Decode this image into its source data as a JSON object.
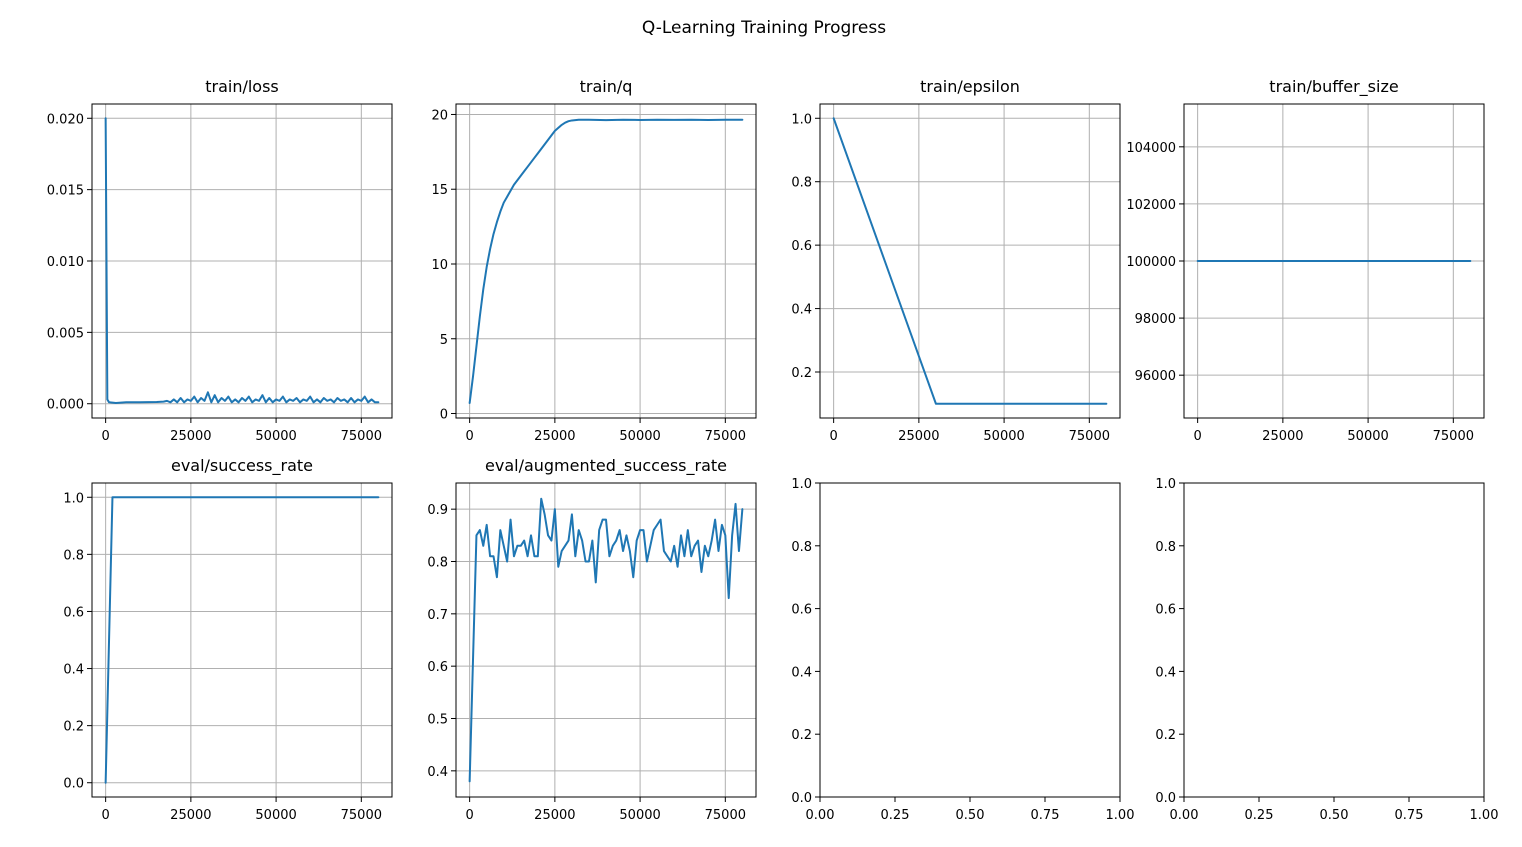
{
  "figure": {
    "title": "Q-Learning Training Progress"
  },
  "colors": {
    "series": "#1f77b4",
    "grid": "#b0b0b0"
  },
  "chart_data": [
    {
      "type": "line",
      "title": "train/loss",
      "grid": true,
      "xlim": [
        -4000,
        84000
      ],
      "ylim": [
        -0.001,
        0.021
      ],
      "xticks": [
        0,
        25000,
        50000,
        75000
      ],
      "xtick_labels": [
        "0",
        "25000",
        "50000",
        "75000"
      ],
      "yticks": [
        0.0,
        0.005,
        0.01,
        0.015,
        0.02
      ],
      "ytick_labels": [
        "0.000",
        "0.005",
        "0.010",
        "0.015",
        "0.020"
      ],
      "series": [
        {
          "x": [
            0,
            500,
            1000,
            3000,
            6000,
            10000,
            15000,
            17000,
            18000,
            19000,
            20000,
            21000,
            22000,
            23000,
            24000,
            25000,
            26000,
            27000,
            28000,
            29000,
            30000,
            31000,
            32000,
            33000,
            34000,
            35000,
            36000,
            37000,
            38000,
            39000,
            40000,
            41000,
            42000,
            43000,
            44000,
            45000,
            46000,
            47000,
            48000,
            49000,
            50000,
            51000,
            52000,
            53000,
            54000,
            55000,
            56000,
            57000,
            58000,
            59000,
            60000,
            61000,
            62000,
            63000,
            64000,
            65000,
            66000,
            67000,
            68000,
            69000,
            70000,
            71000,
            72000,
            73000,
            74000,
            75000,
            76000,
            77000,
            78000,
            79000,
            80000
          ],
          "y": [
            0.02,
            0.0003,
            0.0001,
            5e-05,
            0.0001,
            0.0001,
            0.00012,
            0.00015,
            0.0002,
            0.0001,
            0.0003,
            0.0001,
            0.0004,
            0.0001,
            0.0003,
            0.0002,
            0.0005,
            0.0001,
            0.0004,
            0.0002,
            0.0008,
            0.0001,
            0.0006,
            0.0001,
            0.0004,
            0.0002,
            0.0005,
            0.0001,
            0.0003,
            0.0001,
            0.0004,
            0.0002,
            0.0005,
            0.0001,
            0.0003,
            0.0002,
            0.0006,
            0.0001,
            0.0004,
            0.0001,
            0.0003,
            0.0002,
            0.0005,
            0.0001,
            0.0003,
            0.0002,
            0.0004,
            0.0001,
            0.0003,
            0.0002,
            0.0005,
            0.0001,
            0.0003,
            0.0001,
            0.0004,
            0.0002,
            0.0003,
            0.0001,
            0.0004,
            0.0002,
            0.0003,
            0.0001,
            0.0004,
            0.0001,
            0.0003,
            0.0002,
            0.0005,
            0.0001,
            0.0003,
            0.0001,
            0.0001
          ]
        }
      ]
    },
    {
      "type": "line",
      "title": "train/q",
      "grid": true,
      "xlim": [
        -4000,
        84000
      ],
      "ylim": [
        -0.3,
        20.7
      ],
      "xticks": [
        0,
        25000,
        50000,
        75000
      ],
      "xtick_labels": [
        "0",
        "25000",
        "50000",
        "75000"
      ],
      "yticks": [
        0,
        5,
        10,
        15,
        20
      ],
      "ytick_labels": [
        "0",
        "5",
        "10",
        "15",
        "20"
      ],
      "series": [
        {
          "x": [
            0,
            1000,
            2000,
            3000,
            4000,
            5000,
            6000,
            7000,
            8000,
            9000,
            10000,
            11000,
            12000,
            13000,
            14000,
            15000,
            16000,
            17000,
            18000,
            19000,
            20000,
            21000,
            22000,
            23000,
            24000,
            25000,
            26000,
            27000,
            28000,
            29000,
            30000,
            32000,
            35000,
            40000,
            45000,
            50000,
            55000,
            60000,
            65000,
            70000,
            75000,
            80000
          ],
          "y": [
            0.7,
            2.5,
            4.5,
            6.5,
            8.3,
            9.8,
            11.0,
            12.0,
            12.8,
            13.5,
            14.1,
            14.5,
            14.9,
            15.3,
            15.6,
            15.9,
            16.2,
            16.5,
            16.8,
            17.1,
            17.4,
            17.7,
            18.0,
            18.3,
            18.6,
            18.9,
            19.1,
            19.3,
            19.45,
            19.55,
            19.6,
            19.65,
            19.65,
            19.62,
            19.65,
            19.63,
            19.65,
            19.64,
            19.65,
            19.63,
            19.65,
            19.65
          ]
        }
      ]
    },
    {
      "type": "line",
      "title": "train/epsilon",
      "grid": true,
      "xlim": [
        -4000,
        84000
      ],
      "ylim": [
        0.055,
        1.045
      ],
      "xticks": [
        0,
        25000,
        50000,
        75000
      ],
      "xtick_labels": [
        "0",
        "25000",
        "50000",
        "75000"
      ],
      "yticks": [
        0.2,
        0.4,
        0.6,
        0.8,
        1.0
      ],
      "ytick_labels": [
        "0.2",
        "0.4",
        "0.6",
        "0.8",
        "1.0"
      ],
      "series": [
        {
          "x": [
            0,
            30000,
            80000
          ],
          "y": [
            1.0,
            0.1,
            0.1
          ]
        }
      ]
    },
    {
      "type": "line",
      "title": "train/buffer_size",
      "grid": true,
      "xlim": [
        -4000,
        84000
      ],
      "ylim": [
        94500,
        105500
      ],
      "xticks": [
        0,
        25000,
        50000,
        75000
      ],
      "xtick_labels": [
        "0",
        "25000",
        "50000",
        "75000"
      ],
      "yticks": [
        96000,
        98000,
        100000,
        102000,
        104000
      ],
      "ytick_labels": [
        "96000",
        "98000",
        "100000",
        "102000",
        "104000"
      ],
      "series": [
        {
          "x": [
            0,
            80000
          ],
          "y": [
            100000,
            100000
          ]
        }
      ]
    },
    {
      "type": "line",
      "title": "eval/success_rate",
      "grid": true,
      "xlim": [
        -4000,
        84000
      ],
      "ylim": [
        -0.05,
        1.05
      ],
      "xticks": [
        0,
        25000,
        50000,
        75000
      ],
      "xtick_labels": [
        "0",
        "25000",
        "50000",
        "75000"
      ],
      "yticks": [
        0.0,
        0.2,
        0.4,
        0.6,
        0.8,
        1.0
      ],
      "ytick_labels": [
        "0.0",
        "0.2",
        "0.4",
        "0.6",
        "0.8",
        "1.0"
      ],
      "series": [
        {
          "x": [
            0,
            2000,
            80000
          ],
          "y": [
            0.0,
            1.0,
            1.0
          ]
        }
      ]
    },
    {
      "type": "line",
      "title": "eval/augmented_success_rate",
      "grid": true,
      "xlim": [
        -4000,
        84000
      ],
      "ylim": [
        0.35,
        0.95
      ],
      "xticks": [
        0,
        25000,
        50000,
        75000
      ],
      "xtick_labels": [
        "0",
        "25000",
        "50000",
        "75000"
      ],
      "yticks": [
        0.4,
        0.5,
        0.6,
        0.7,
        0.8,
        0.9
      ],
      "ytick_labels": [
        "0.4",
        "0.5",
        "0.6",
        "0.7",
        "0.8",
        "0.9"
      ],
      "series": [
        {
          "x": [
            0,
            2000,
            3000,
            4000,
            5000,
            6000,
            7000,
            8000,
            9000,
            10000,
            11000,
            12000,
            13000,
            14000,
            15000,
            16000,
            17000,
            18000,
            19000,
            20000,
            21000,
            22000,
            23000,
            24000,
            25000,
            26000,
            27000,
            28000,
            29000,
            30000,
            31000,
            32000,
            33000,
            34000,
            35000,
            36000,
            37000,
            38000,
            39000,
            40000,
            41000,
            42000,
            43000,
            44000,
            45000,
            46000,
            47000,
            48000,
            49000,
            50000,
            51000,
            52000,
            53000,
            54000,
            55000,
            56000,
            57000,
            58000,
            59000,
            60000,
            61000,
            62000,
            63000,
            64000,
            65000,
            66000,
            67000,
            68000,
            69000,
            70000,
            71000,
            72000,
            73000,
            74000,
            75000,
            76000,
            77000,
            78000,
            79000,
            80000
          ],
          "y": [
            0.38,
            0.85,
            0.86,
            0.83,
            0.87,
            0.81,
            0.81,
            0.77,
            0.86,
            0.83,
            0.8,
            0.88,
            0.81,
            0.83,
            0.83,
            0.84,
            0.81,
            0.85,
            0.81,
            0.81,
            0.92,
            0.89,
            0.85,
            0.84,
            0.9,
            0.79,
            0.82,
            0.83,
            0.84,
            0.89,
            0.81,
            0.86,
            0.84,
            0.8,
            0.8,
            0.84,
            0.76,
            0.86,
            0.88,
            0.88,
            0.81,
            0.83,
            0.84,
            0.86,
            0.82,
            0.85,
            0.82,
            0.77,
            0.84,
            0.86,
            0.86,
            0.8,
            0.83,
            0.86,
            0.87,
            0.88,
            0.82,
            0.81,
            0.8,
            0.83,
            0.79,
            0.85,
            0.81,
            0.86,
            0.81,
            0.83,
            0.84,
            0.78,
            0.83,
            0.81,
            0.84,
            0.88,
            0.82,
            0.87,
            0.85,
            0.73,
            0.85,
            0.91,
            0.82,
            0.9
          ]
        }
      ]
    },
    {
      "type": "line",
      "title": "",
      "grid": false,
      "xlim": [
        0,
        1
      ],
      "ylim": [
        0,
        1
      ],
      "xticks": [
        0,
        0.25,
        0.5,
        0.75,
        1.0
      ],
      "xtick_labels": [
        "0.00",
        "0.25",
        "0.50",
        "0.75",
        "1.00"
      ],
      "yticks": [
        0,
        0.2,
        0.4,
        0.6,
        0.8,
        1.0
      ],
      "ytick_labels": [
        "0.0",
        "0.2",
        "0.4",
        "0.6",
        "0.8",
        "1.0"
      ],
      "series": []
    },
    {
      "type": "line",
      "title": "",
      "grid": false,
      "xlim": [
        0,
        1
      ],
      "ylim": [
        0,
        1
      ],
      "xticks": [
        0,
        0.25,
        0.5,
        0.75,
        1.0
      ],
      "xtick_labels": [
        "0.00",
        "0.25",
        "0.50",
        "0.75",
        "1.00"
      ],
      "yticks": [
        0,
        0.2,
        0.4,
        0.6,
        0.8,
        1.0
      ],
      "ytick_labels": [
        "0.0",
        "0.2",
        "0.4",
        "0.6",
        "0.8",
        "1.0"
      ],
      "series": []
    }
  ]
}
